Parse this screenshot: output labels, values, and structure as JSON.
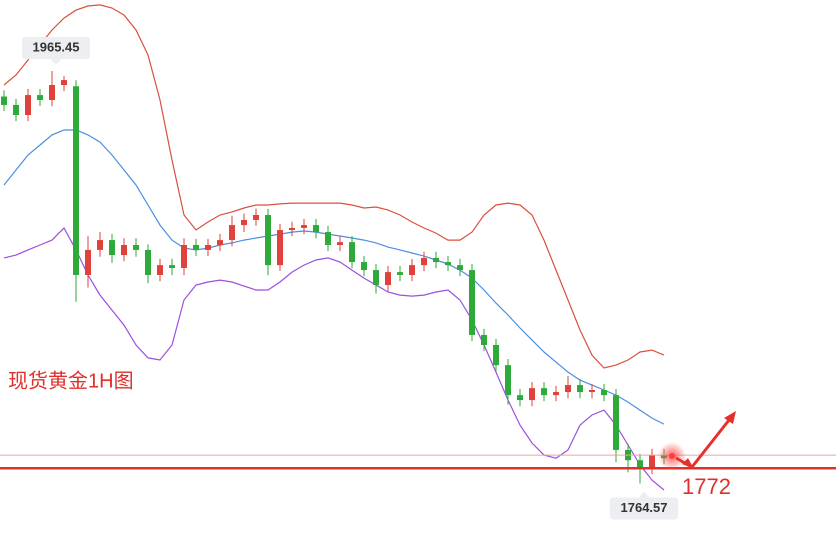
{
  "chart_data": {
    "type": "candlestick",
    "title": "现货黄金1H图",
    "ylim": [
      1739,
      2000
    ],
    "up_color": "#e0413a",
    "down_color": "#2eaa3a",
    "open": [
      1953.0,
      1948.9,
      1944.0,
      1953.7,
      1951.3,
      1958.6,
      1958.0,
      1866.1,
      1878.3,
      1883.1,
      1875.8,
      1880.7,
      1878.3,
      1866.1,
      1870.9,
      1869.5,
      1880.7,
      1878.3,
      1880.7,
      1883.1,
      1890.4,
      1892.9,
      1895.3,
      1870.9,
      1888.0,
      1889.0,
      1890.4,
      1887.0,
      1880.7,
      1882.1,
      1872.4,
      1868.5,
      1861.2,
      1867.5,
      1866.1,
      1870.9,
      1874.4,
      1872.4,
      1870.9,
      1868.5,
      1836.9,
      1832.0,
      1822.2,
      1807.6,
      1805.2,
      1811.0,
      1807.6,
      1809.1,
      1812.5,
      1809.1,
      1810.1,
      1807.6,
      1780.9,
      1775.9,
      1772.1,
      1778.4
    ],
    "high": [
      1956.0,
      1951.9,
      1956.7,
      1956.7,
      1965.45,
      1963.0,
      1961.0,
      1885.0,
      1887.0,
      1886.0,
      1884.0,
      1884.0,
      1881.0,
      1874.0,
      1874.0,
      1884.0,
      1883.7,
      1883.7,
      1886.1,
      1895.0,
      1896.0,
      1898.5,
      1898.3,
      1891.0,
      1892.0,
      1893.4,
      1893.4,
      1890.0,
      1885.1,
      1885.1,
      1875.4,
      1871.5,
      1870.5,
      1870.5,
      1873.9,
      1877.4,
      1877.4,
      1875.4,
      1874.0,
      1871.5,
      1839.9,
      1835.0,
      1825.2,
      1810.6,
      1814.0,
      1814.0,
      1812.1,
      1817.0,
      1815.5,
      1813.1,
      1813.1,
      1810.6,
      1784.0,
      1779.0,
      1781.4,
      1781.4
    ],
    "low": [
      1945.9,
      1941.0,
      1941.0,
      1948.3,
      1948.3,
      1955.6,
      1853.0,
      1860.0,
      1875.0,
      1872.0,
      1872.8,
      1875.0,
      1862.0,
      1863.0,
      1866.0,
      1866.0,
      1875.3,
      1875.3,
      1877.7,
      1880.0,
      1887.0,
      1890.0,
      1866.0,
      1868.0,
      1885.0,
      1886.0,
      1884.0,
      1877.7,
      1877.7,
      1869.4,
      1865.5,
      1857.0,
      1858.2,
      1863.1,
      1863.1,
      1867.9,
      1869.4,
      1867.9,
      1865.5,
      1833.9,
      1829.0,
      1819.2,
      1803.0,
      1802.2,
      1802.2,
      1804.6,
      1804.6,
      1806.1,
      1806.1,
      1806.1,
      1804.6,
      1775.0,
      1770.0,
      1764.57,
      1769.1,
      1773.9
    ],
    "close": [
      1948.9,
      1944.0,
      1953.7,
      1951.3,
      1958.6,
      1961.0,
      1866.1,
      1878.3,
      1883.1,
      1875.8,
      1880.7,
      1878.3,
      1866.1,
      1870.9,
      1869.5,
      1880.7,
      1878.3,
      1880.7,
      1883.1,
      1890.4,
      1892.9,
      1895.3,
      1870.9,
      1888.0,
      1889.0,
      1890.4,
      1887.0,
      1880.7,
      1882.1,
      1872.4,
      1868.5,
      1861.2,
      1867.5,
      1866.1,
      1870.9,
      1874.4,
      1872.4,
      1870.9,
      1868.5,
      1836.9,
      1832.0,
      1822.2,
      1807.6,
      1805.2,
      1811.0,
      1807.6,
      1809.1,
      1812.5,
      1809.1,
      1810.1,
      1807.6,
      1780.9,
      1775.9,
      1772.1,
      1778.4,
      1776.9
    ],
    "bands": {
      "upper": {
        "color": "#d9503f",
        "values": [
          1958.6,
          1963.5,
          1970.8,
          1978.1,
          1985.4,
          1991.2,
          1995.1,
          1997.1,
          1997.6,
          1996.1,
          1992.7,
          1985.4,
          1973.2,
          1951.3,
          1922.1,
          1895.3,
          1888.0,
          1891.9,
          1895.3,
          1896.8,
          1898.7,
          1900.2,
          1900.2,
          1900.7,
          1901.1,
          1901.1,
          1901.1,
          1901.1,
          1901.1,
          1900.2,
          1898.7,
          1899.2,
          1897.7,
          1895.3,
          1891.9,
          1889.0,
          1886.5,
          1883.1,
          1883.1,
          1887.0,
          1895.3,
          1900.2,
          1901.1,
          1900.2,
          1895.3,
          1883.1,
          1868.5,
          1853.9,
          1839.3,
          1827.1,
          1820.8,
          1822.2,
          1824.7,
          1828.6,
          1829.5,
          1827.1
        ]
      },
      "middle": {
        "color": "#4a8fe0",
        "values": [
          1909.9,
          1917.2,
          1924.5,
          1929.4,
          1934.3,
          1936.7,
          1936.7,
          1934.3,
          1930.8,
          1924.5,
          1917.2,
          1909.9,
          1900.2,
          1890.4,
          1883.1,
          1879.2,
          1878.3,
          1879.2,
          1880.7,
          1881.7,
          1883.1,
          1884.1,
          1885.1,
          1886.0,
          1887.0,
          1887.5,
          1887.0,
          1886.0,
          1885.1,
          1884.1,
          1883.1,
          1881.7,
          1879.7,
          1878.3,
          1876.8,
          1875.3,
          1873.4,
          1871.4,
          1868.5,
          1864.6,
          1858.8,
          1852.4,
          1846.6,
          1840.3,
          1834.4,
          1828.6,
          1823.7,
          1818.8,
          1814.9,
          1812.5,
          1810.1,
          1807.6,
          1804.2,
          1800.3,
          1796.4,
          1793.5
        ]
      },
      "lower": {
        "color": "#9b4fe0",
        "values": [
          1874.4,
          1875.8,
          1878.3,
          1880.7,
          1883.1,
          1889.0,
          1878.3,
          1866.1,
          1856.3,
          1849.0,
          1841.7,
          1832.0,
          1825.7,
          1824.7,
          1832.0,
          1853.9,
          1861.2,
          1862.7,
          1863.6,
          1862.7,
          1860.7,
          1858.8,
          1858.8,
          1862.7,
          1867.5,
          1870.9,
          1873.4,
          1874.4,
          1872.4,
          1868.5,
          1864.6,
          1861.2,
          1857.8,
          1856.3,
          1855.8,
          1856.3,
          1857.8,
          1858.8,
          1853.9,
          1844.2,
          1832.0,
          1818.8,
          1805.2,
          1793.0,
          1784.3,
          1778.4,
          1776.9,
          1780.9,
          1793.0,
          1797.9,
          1800.3,
          1793.0,
          1783.3,
          1773.6,
          1766.2,
          1761.4
        ]
      }
    },
    "price_line": {
      "value": 1778.4,
      "color": "#f0a0a0"
    },
    "level": {
      "value": 1772,
      "color": "#e0302a"
    }
  }
}
